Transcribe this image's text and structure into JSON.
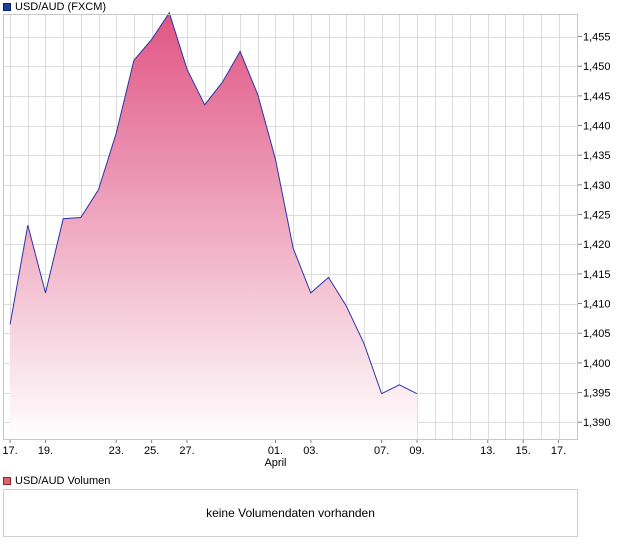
{
  "chart_data": {
    "type": "area",
    "title": "USD/AUD (FXCM)",
    "y_ticks": [
      "1,455",
      "1,450",
      "1,445",
      "1,440",
      "1,435",
      "1,430",
      "1,425",
      "1,420",
      "1,415",
      "1,410",
      "1,405",
      "1,400",
      "1,395",
      "1,390"
    ],
    "x_labels": [
      {
        "day": 0,
        "label": "17."
      },
      {
        "day": 2,
        "label": "19."
      },
      {
        "day": 6,
        "label": "23."
      },
      {
        "day": 8,
        "label": "25."
      },
      {
        "day": 10,
        "label": "27."
      },
      {
        "day": 15,
        "label": "01."
      },
      {
        "day": 17,
        "label": "03."
      },
      {
        "day": 21,
        "label": "07."
      },
      {
        "day": 23,
        "label": "09."
      },
      {
        "day": 27,
        "label": "13."
      },
      {
        "day": 29,
        "label": "15."
      },
      {
        "day": 31,
        "label": "17."
      }
    ],
    "month_label": "April",
    "month_label_day": 15,
    "x_range": [
      -0.4,
      32.1
    ],
    "ylim": [
      1.387,
      1.4588
    ],
    "points": [
      [
        0,
        1.4065
      ],
      [
        1,
        1.4232
      ],
      [
        2,
        1.4118
      ],
      [
        3,
        1.4243
      ],
      [
        4,
        1.4245
      ],
      [
        5,
        1.4292
      ],
      [
        6,
        1.4387
      ],
      [
        7,
        1.451
      ],
      [
        8,
        1.4545
      ],
      [
        9,
        1.459
      ],
      [
        10,
        1.4495
      ],
      [
        11,
        1.4435
      ],
      [
        12,
        1.4473
      ],
      [
        13,
        1.4525
      ],
      [
        14,
        1.4452
      ],
      [
        15,
        1.4343
      ],
      [
        16,
        1.4193
      ],
      [
        17,
        1.4118
      ],
      [
        18,
        1.4144
      ],
      [
        19,
        1.4096
      ],
      [
        20,
        1.4033
      ],
      [
        21,
        1.3948
      ],
      [
        22,
        1.3963
      ],
      [
        23,
        1.3948
      ]
    ],
    "line_color": "#2a35a8",
    "fill_top_color": "#e05584",
    "fill_bottom_color": "#ffffff",
    "grid": true
  },
  "volume_panel": {
    "legend": "USD/AUD Volumen",
    "message": "keine Volumendaten vorhanden"
  }
}
